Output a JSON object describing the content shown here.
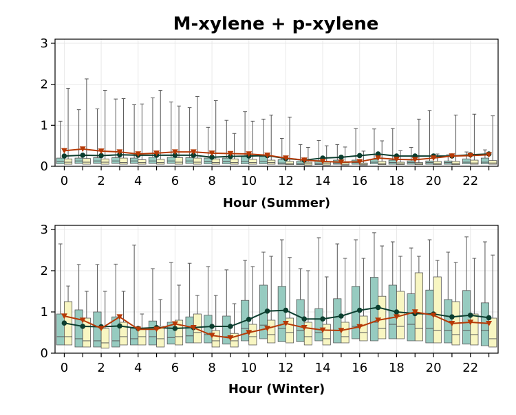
{
  "chart_data": {
    "type": "box",
    "title": "M-xylene + p-xylene",
    "colors": {
      "box_a": "#96cbc0",
      "box_b": "#f8f6c2",
      "box_edge": "#555555",
      "line_a": "#0b3d2e",
      "line_b": "#b63a06",
      "grid": "#e8e8e8"
    },
    "panels": [
      {
        "xlabel": "Hour (Summer)",
        "ylim": [
          0,
          3.1
        ],
        "yticks": [
          0,
          1,
          2,
          3
        ],
        "xticks": [
          0,
          2,
          4,
          6,
          8,
          10,
          12,
          14,
          16,
          18,
          20,
          22
        ],
        "grid": true,
        "hours": [
          0,
          1,
          2,
          3,
          4,
          5,
          6,
          7,
          8,
          9,
          10,
          11,
          12,
          13,
          14,
          15,
          16,
          17,
          18,
          19,
          20,
          21,
          22,
          23
        ],
        "series": [
          {
            "mean": [
              0.25,
              0.27,
              0.26,
              0.28,
              0.27,
              0.27,
              0.27,
              0.27,
              0.22,
              0.24,
              0.25,
              0.26,
              0.19,
              0.15,
              0.2,
              0.22,
              0.26,
              0.3,
              0.25,
              0.25,
              0.25,
              0.25,
              0.28,
              0.3
            ],
            "box": [
              [
                0.02,
                0.06,
                0.12,
                0.2,
                1.1
              ],
              [
                0.02,
                0.07,
                0.13,
                0.2,
                1.38
              ],
              [
                0.02,
                0.07,
                0.13,
                0.21,
                1.4
              ],
              [
                0.02,
                0.07,
                0.13,
                0.21,
                1.64
              ],
              [
                0.02,
                0.07,
                0.13,
                0.2,
                1.5
              ],
              [
                0.02,
                0.07,
                0.13,
                0.22,
                1.67
              ],
              [
                0.02,
                0.07,
                0.13,
                0.22,
                1.57
              ],
              [
                0.02,
                0.07,
                0.13,
                0.21,
                1.43
              ],
              [
                0.02,
                0.06,
                0.11,
                0.2,
                0.95
              ],
              [
                0.02,
                0.06,
                0.11,
                0.2,
                1.12
              ],
              [
                0.02,
                0.06,
                0.12,
                0.25,
                1.33
              ],
              [
                0.02,
                0.06,
                0.12,
                0.24,
                1.15
              ],
              [
                0.02,
                0.05,
                0.08,
                0.16,
                0.68
              ],
              [
                0.02,
                0.04,
                0.07,
                0.12,
                0.53
              ],
              [
                0.02,
                0.04,
                0.07,
                0.14,
                0.63
              ],
              [
                0.02,
                0.05,
                0.08,
                0.15,
                0.53
              ],
              [
                0.02,
                0.05,
                0.09,
                0.15,
                0.92
              ],
              [
                0.02,
                0.06,
                0.1,
                0.17,
                0.91
              ],
              [
                0.02,
                0.05,
                0.09,
                0.15,
                0.92
              ],
              [
                0.02,
                0.05,
                0.09,
                0.13,
                0.46
              ],
              [
                0.02,
                0.05,
                0.09,
                0.13,
                1.36
              ],
              [
                0.02,
                0.05,
                0.09,
                0.13,
                0.28
              ],
              [
                0.02,
                0.06,
                0.1,
                0.18,
                0.35
              ],
              [
                0.02,
                0.06,
                0.1,
                0.2,
                0.4
              ]
            ]
          },
          {
            "mean": [
              0.38,
              0.42,
              0.37,
              0.35,
              0.3,
              0.32,
              0.35,
              0.35,
              0.32,
              0.31,
              0.3,
              0.27,
              0.2,
              0.15,
              0.12,
              0.1,
              0.11,
              0.2,
              0.17,
              0.16,
              0.2,
              0.25,
              0.26,
              0.28
            ],
            "box": [
              [
                0.02,
                0.05,
                0.1,
                0.18,
                1.9
              ],
              [
                0.02,
                0.05,
                0.1,
                0.19,
                2.13
              ],
              [
                0.02,
                0.05,
                0.1,
                0.18,
                1.85
              ],
              [
                0.02,
                0.05,
                0.09,
                0.2,
                1.65
              ],
              [
                0.02,
                0.05,
                0.09,
                0.16,
                1.52
              ],
              [
                0.02,
                0.05,
                0.09,
                0.17,
                1.85
              ],
              [
                0.02,
                0.05,
                0.1,
                0.21,
                1.47
              ],
              [
                0.02,
                0.05,
                0.1,
                0.2,
                1.7
              ],
              [
                0.02,
                0.05,
                0.09,
                0.18,
                1.6
              ],
              [
                0.02,
                0.05,
                0.09,
                0.18,
                0.8
              ],
              [
                0.02,
                0.05,
                0.09,
                0.17,
                1.1
              ],
              [
                0.02,
                0.05,
                0.09,
                0.15,
                1.25
              ],
              [
                0.02,
                0.04,
                0.07,
                0.12,
                1.2
              ],
              [
                0.02,
                0.03,
                0.06,
                0.1,
                0.46
              ],
              [
                0.02,
                0.03,
                0.06,
                0.1,
                0.5
              ],
              [
                0.02,
                0.03,
                0.05,
                0.09,
                0.47
              ],
              [
                0.02,
                0.03,
                0.05,
                0.08,
                0.37
              ],
              [
                0.02,
                0.04,
                0.06,
                0.12,
                0.62
              ],
              [
                0.02,
                0.04,
                0.06,
                0.1,
                0.38
              ],
              [
                0.02,
                0.04,
                0.06,
                0.09,
                1.15
              ],
              [
                0.02,
                0.04,
                0.07,
                0.12,
                0.3
              ],
              [
                0.02,
                0.04,
                0.07,
                0.12,
                1.25
              ],
              [
                0.02,
                0.05,
                0.08,
                0.15,
                1.27
              ],
              [
                0.02,
                0.05,
                0.08,
                0.14,
                1.23
              ]
            ]
          }
        ]
      },
      {
        "xlabel": "Hour (Winter)",
        "ylim": [
          0,
          3.1
        ],
        "yticks": [
          0,
          1,
          2,
          3
        ],
        "xticks": [
          0,
          2,
          4,
          6,
          8,
          10,
          12,
          14,
          16,
          18,
          20,
          22
        ],
        "grid": true,
        "hours": [
          0,
          1,
          2,
          3,
          4,
          5,
          6,
          7,
          8,
          9,
          10,
          11,
          12,
          13,
          14,
          15,
          16,
          17,
          18,
          19,
          20,
          21,
          22,
          23
        ],
        "series": [
          {
            "mean": [
              0.73,
              0.65,
              0.64,
              0.66,
              0.6,
              0.62,
              0.6,
              0.62,
              0.65,
              0.65,
              0.82,
              1.02,
              1.04,
              0.83,
              0.83,
              0.9,
              1.04,
              1.11,
              1.0,
              0.96,
              0.95,
              0.88,
              0.92,
              0.86
            ],
            "box": [
              [
                0.05,
                0.2,
                0.4,
                0.95,
                2.65
              ],
              [
                0.05,
                0.15,
                0.35,
                1.05,
                2.15
              ],
              [
                0.05,
                0.15,
                0.3,
                1.0,
                2.15
              ],
              [
                0.05,
                0.15,
                0.3,
                0.88,
                2.16
              ],
              [
                0.05,
                0.2,
                0.35,
                0.6,
                2.62
              ],
              [
                0.05,
                0.2,
                0.4,
                0.78,
                2.05
              ],
              [
                0.05,
                0.22,
                0.38,
                0.75,
                2.2
              ],
              [
                0.05,
                0.25,
                0.42,
                0.88,
                2.18
              ],
              [
                0.05,
                0.25,
                0.45,
                0.92,
                2.1
              ],
              [
                0.05,
                0.22,
                0.4,
                0.9,
                2.02
              ],
              [
                0.05,
                0.3,
                0.6,
                1.28,
                2.25
              ],
              [
                0.05,
                0.35,
                0.68,
                1.65,
                2.45
              ],
              [
                0.05,
                0.28,
                0.6,
                1.62,
                2.75
              ],
              [
                0.05,
                0.28,
                0.55,
                1.3,
                2.05
              ],
              [
                0.05,
                0.3,
                0.5,
                1.08,
                2.8
              ],
              [
                0.05,
                0.25,
                0.55,
                1.32,
                2.65
              ],
              [
                0.05,
                0.35,
                0.65,
                1.62,
                2.75
              ],
              [
                0.05,
                0.3,
                0.75,
                1.84,
                2.92
              ],
              [
                0.05,
                0.35,
                0.7,
                1.65,
                2.7
              ],
              [
                0.05,
                0.3,
                0.7,
                1.44,
                2.55
              ],
              [
                0.05,
                0.25,
                0.6,
                1.53,
                2.75
              ],
              [
                0.05,
                0.25,
                0.55,
                1.3,
                2.45
              ],
              [
                0.05,
                0.22,
                0.55,
                1.52,
                2.82
              ],
              [
                0.05,
                0.18,
                0.55,
                1.22,
                2.7
              ]
            ]
          },
          {
            "mean": [
              0.9,
              0.8,
              0.6,
              0.88,
              0.58,
              0.58,
              0.71,
              0.62,
              0.43,
              0.37,
              0.5,
              0.6,
              0.72,
              0.62,
              0.56,
              0.55,
              0.64,
              0.8,
              0.88,
              1.0,
              0.92,
              0.72,
              0.75,
              0.72
            ],
            "box": [
              [
                0.05,
                0.2,
                0.4,
                1.25,
                1.63
              ],
              [
                0.05,
                0.15,
                0.3,
                0.85,
                1.5
              ],
              [
                0.05,
                0.12,
                0.25,
                0.6,
                1.5
              ],
              [
                0.05,
                0.2,
                0.4,
                0.75,
                1.5
              ],
              [
                0.05,
                0.2,
                0.4,
                0.6,
                0.95
              ],
              [
                0.05,
                0.15,
                0.35,
                0.65,
                1.3
              ],
              [
                0.05,
                0.2,
                0.4,
                0.8,
                1.65
              ],
              [
                0.05,
                0.25,
                0.5,
                0.95,
                1.4
              ],
              [
                0.05,
                0.15,
                0.3,
                0.55,
                1.4
              ],
              [
                0.05,
                0.15,
                0.3,
                0.48,
                1.2
              ],
              [
                0.05,
                0.2,
                0.4,
                0.7,
                2.1
              ],
              [
                0.05,
                0.25,
                0.45,
                0.8,
                2.35
              ],
              [
                0.05,
                0.25,
                0.5,
                0.85,
                2.32
              ],
              [
                0.05,
                0.2,
                0.4,
                0.75,
                2.0
              ],
              [
                0.05,
                0.2,
                0.35,
                0.7,
                1.85
              ],
              [
                0.05,
                0.25,
                0.4,
                0.75,
                2.3
              ],
              [
                0.05,
                0.3,
                0.5,
                0.9,
                2.3
              ],
              [
                0.05,
                0.35,
                0.6,
                1.38,
                2.6
              ],
              [
                0.05,
                0.35,
                0.65,
                1.5,
                2.35
              ],
              [
                0.05,
                0.3,
                0.6,
                1.95,
                2.35
              ],
              [
                0.05,
                0.25,
                0.55,
                1.85,
                2.25
              ],
              [
                0.05,
                0.2,
                0.45,
                1.25,
                2.2
              ],
              [
                0.05,
                0.2,
                0.45,
                0.95,
                2.3
              ],
              [
                0.05,
                0.15,
                0.35,
                0.85,
                2.38
              ]
            ]
          }
        ]
      }
    ]
  }
}
